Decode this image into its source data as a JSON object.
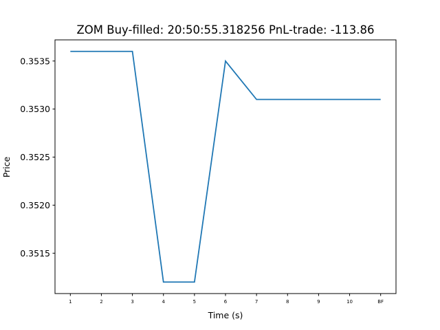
{
  "chart_data": {
    "type": "line",
    "title": "ZOM  Buy-filled:  20:50:55.318256  PnL-trade:  -113.86",
    "xlabel": "Time (s)",
    "ylabel": "Price",
    "categories": [
      "1",
      "2",
      "3",
      "4",
      "5",
      "6",
      "7",
      "8",
      "9",
      "10",
      "BF"
    ],
    "series": [
      {
        "values": [
          0.3536,
          0.3536,
          0.3536,
          0.3512,
          0.3512,
          0.3535,
          0.3531,
          0.3531,
          0.3531,
          0.3531,
          0.3531
        ],
        "color": "#1f77b4"
      }
    ],
    "yticks": [
      0.3515,
      0.352,
      0.3525,
      0.353,
      0.3535
    ],
    "ytick_labels": [
      "0.3515",
      "0.3520",
      "0.3525",
      "0.3530",
      "0.3535"
    ],
    "ylim": [
      0.35108,
      0.35372
    ],
    "grid": false,
    "legend": "none"
  }
}
